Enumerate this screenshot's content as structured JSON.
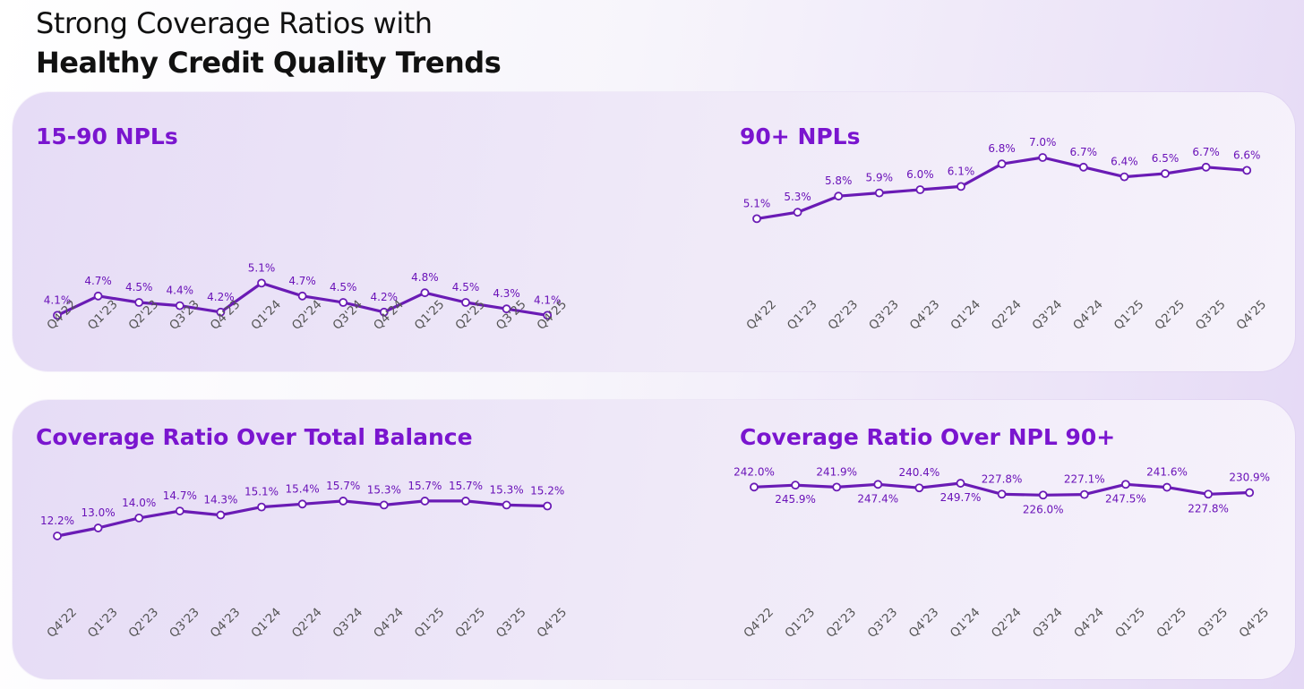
{
  "header": {
    "line1": "Strong Coverage Ratios with",
    "line2": "Healthy Credit Quality Trends"
  },
  "colors": {
    "accent": "#7a15cf",
    "line": "#6a1bb5",
    "label": "#6a12b8"
  },
  "chart_data": [
    {
      "type": "line",
      "title": "15-90 NPLs",
      "categories": [
        "Q4'22",
        "Q1'23",
        "Q2'23",
        "Q3'23",
        "Q4'23",
        "Q1'24",
        "Q2'24",
        "Q3'24",
        "Q4'24",
        "Q1'25",
        "Q2'25",
        "Q3'25",
        "Q4'25"
      ],
      "values": [
        4.1,
        4.7,
        4.5,
        4.4,
        4.2,
        5.1,
        4.7,
        4.5,
        4.2,
        4.8,
        4.5,
        4.3,
        4.1
      ],
      "labels": [
        "4.1%",
        "4.7%",
        "4.5%",
        "4.4%",
        "4.2%",
        "5.1%",
        "4.7%",
        "4.5%",
        "4.2%",
        "4.8%",
        "4.5%",
        "4.3%",
        "4.1%"
      ],
      "label_below": [
        false,
        false,
        false,
        false,
        false,
        false,
        false,
        false,
        false,
        false,
        false,
        false,
        false
      ],
      "ylim": [
        3,
        10
      ]
    },
    {
      "type": "line",
      "title": "90+ NPLs",
      "categories": [
        "Q4'22",
        "Q1'23",
        "Q2'23",
        "Q3'23",
        "Q4'23",
        "Q1'24",
        "Q2'24",
        "Q3'24",
        "Q4'24",
        "Q1'25",
        "Q2'25",
        "Q3'25",
        "Q4'25"
      ],
      "values": [
        5.1,
        5.3,
        5.8,
        5.9,
        6.0,
        6.1,
        6.8,
        7.0,
        6.7,
        6.4,
        6.5,
        6.7,
        6.6
      ],
      "labels": [
        "5.1%",
        "5.3%",
        "5.8%",
        "5.9%",
        "6.0%",
        "6.1%",
        "6.8%",
        "7.0%",
        "6.7%",
        "6.4%",
        "6.5%",
        "6.7%",
        "6.6%"
      ],
      "label_below": [
        false,
        false,
        false,
        false,
        false,
        false,
        false,
        false,
        false,
        false,
        false,
        false,
        false
      ],
      "ylim": [
        1,
        8
      ]
    },
    {
      "type": "line",
      "title": "Coverage Ratio Over Total Balance",
      "categories": [
        "Q4'22",
        "Q1'23",
        "Q2'23",
        "Q3'23",
        "Q4'23",
        "Q1'24",
        "Q2'24",
        "Q3'24",
        "Q4'24",
        "Q1'25",
        "Q2'25",
        "Q3'25",
        "Q4'25"
      ],
      "values": [
        12.2,
        13.0,
        14.0,
        14.7,
        14.3,
        15.1,
        15.4,
        15.7,
        15.3,
        15.7,
        15.7,
        15.3,
        15.2
      ],
      "labels": [
        "12.2%",
        "13.0%",
        "14.0%",
        "14.7%",
        "14.3%",
        "15.1%",
        "15.4%",
        "15.7%",
        "15.3%",
        "15.7%",
        "15.7%",
        "15.3%",
        "15.2%"
      ],
      "label_below": [
        false,
        false,
        false,
        false,
        false,
        false,
        false,
        false,
        false,
        false,
        false,
        false,
        false
      ],
      "ylim": [
        0,
        20
      ]
    },
    {
      "type": "line",
      "title": "Coverage Ratio Over NPL 90+",
      "categories": [
        "Q4'22",
        "Q1'23",
        "Q2'23",
        "Q3'23",
        "Q4'23",
        "Q1'24",
        "Q2'24",
        "Q3'24",
        "Q4'24",
        "Q1'25",
        "Q2'25",
        "Q3'25",
        "Q4'25"
      ],
      "values": [
        242.0,
        245.9,
        241.9,
        247.4,
        240.4,
        249.7,
        227.8,
        226.0,
        227.1,
        247.5,
        241.6,
        227.8,
        230.9
      ],
      "labels": [
        "242.0%",
        "245.9%",
        "241.9%",
        "247.4%",
        "240.4%",
        "249.7%",
        "227.8%",
        "226.0%",
        "227.1%",
        "247.5%",
        "241.6%",
        "227.8%",
        "230.9%"
      ],
      "label_below": [
        false,
        true,
        false,
        true,
        false,
        true,
        false,
        true,
        false,
        true,
        false,
        true,
        false
      ],
      "ylim": [
        -100,
        300
      ]
    }
  ]
}
